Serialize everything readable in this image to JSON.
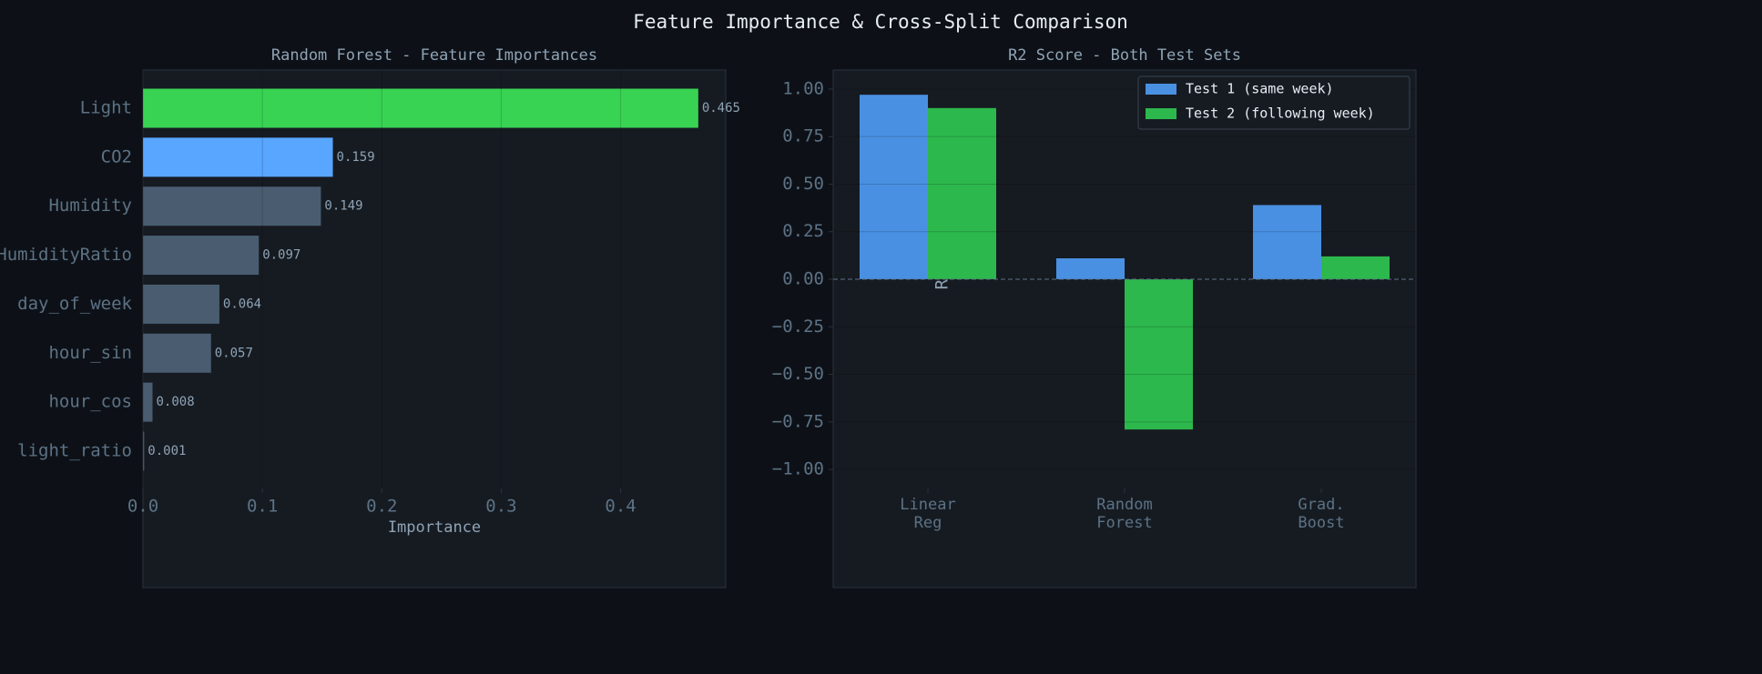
{
  "title": "Feature Importance & Cross-Split Comparison",
  "chart_data": [
    {
      "type": "barh",
      "title": "Random Forest - Feature Importances",
      "xlabel": "Importance",
      "categories": [
        "Light",
        "CO2",
        "Humidity",
        "HumidityRatio",
        "day_of_week",
        "hour_sin",
        "hour_cos",
        "light_ratio"
      ],
      "values": [
        0.465,
        0.159,
        0.149,
        0.097,
        0.064,
        0.057,
        0.008,
        0.001
      ],
      "colors": [
        "#39d353",
        "#58a6ff",
        "#4a5d70",
        "#4a5d70",
        "#4a5d70",
        "#4a5d70",
        "#4a5d70",
        "#4a5d70"
      ],
      "xlim": [
        0,
        0.488
      ],
      "xticks": [
        {
          "value": 0,
          "label": "0.0"
        },
        0.1,
        0.2,
        0.3,
        0.4
      ],
      "grid": true
    },
    {
      "type": "grouped_bar",
      "title": "R2 Score - Both Test Sets",
      "ylabel": "R2",
      "categories": [
        "Linear\nReg",
        "Random\nForest",
        "Grad.\nBoost"
      ],
      "series": [
        {
          "name": "Test 1 (same week)",
          "color": "#4a90e2",
          "values": [
            0.97,
            0.11,
            0.39
          ]
        },
        {
          "name": "Test 2 (following week)",
          "color": "#2db84d",
          "values": [
            0.9,
            -0.79,
            0.12
          ]
        }
      ],
      "ylim": [
        -1.1,
        1.1
      ],
      "yticks": [
        {
          "value": 1,
          "label": "1.00"
        },
        {
          "value": 0.75,
          "label": "0.75"
        },
        {
          "value": 0.5,
          "label": "0.50"
        },
        {
          "value": 0.25,
          "label": "0.25"
        },
        {
          "value": 0,
          "label": "0.00"
        },
        {
          "value": -0.25,
          "label": "−0.25"
        },
        {
          "value": -0.5,
          "label": "−0.50"
        },
        {
          "value": -0.75,
          "label": "−0.75"
        },
        {
          "value": -1,
          "label": "−1.00"
        }
      ],
      "reference_line": 0,
      "grid": true,
      "legend": "upper right"
    }
  ]
}
